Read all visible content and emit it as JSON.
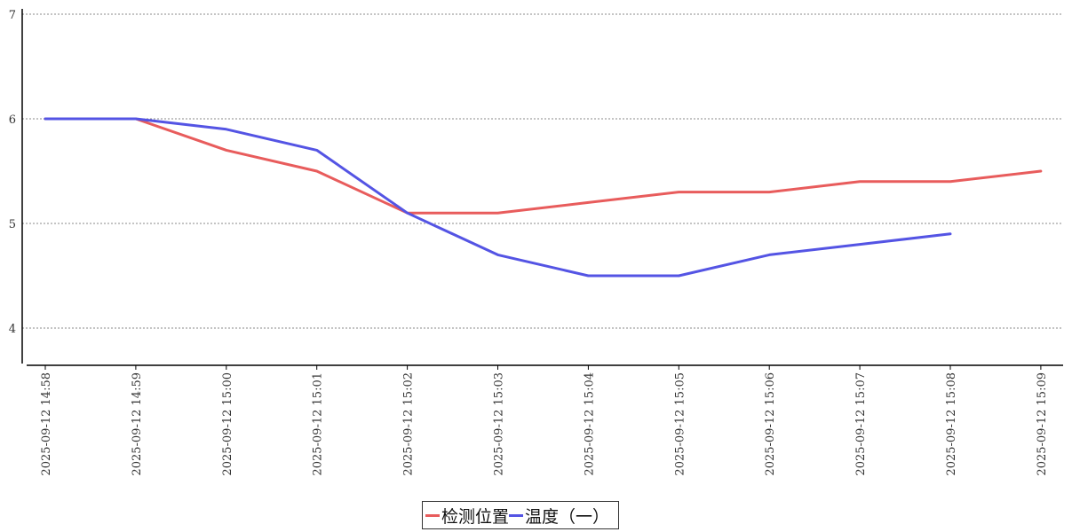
{
  "chart_data": {
    "type": "line",
    "title": "",
    "xlabel": "",
    "ylabel": "",
    "categories": [
      "2025-09-12 14:58",
      "2025-09-12 14:59",
      "2025-09-12 15:00",
      "2025-09-12 15:01",
      "2025-09-12 15:02",
      "2025-09-12 15:03",
      "2025-09-12 15:04",
      "2025-09-12 15:05",
      "2025-09-12 15:06",
      "2025-09-12 15:07",
      "2025-09-12 15:08",
      "2025-09-12 15:09"
    ],
    "yticks": [
      "4",
      "5",
      "6",
      "7"
    ],
    "ylim": [
      3.67,
      7
    ],
    "grid": "horizontal-dashed",
    "legend_position": "bottom-center",
    "series": [
      {
        "name": "检测位置",
        "color": "#e85c5c",
        "values": [
          6.0,
          6.0,
          5.7,
          5.5,
          5.1,
          5.1,
          5.2,
          5.3,
          5.3,
          5.4,
          5.4,
          5.5
        ]
      },
      {
        "name": "温度（一）",
        "color": "#5454e4",
        "values": [
          6.0,
          6.0,
          5.9,
          5.7,
          5.1,
          4.7,
          4.5,
          4.5,
          4.7,
          4.8,
          4.9,
          null
        ]
      }
    ]
  }
}
